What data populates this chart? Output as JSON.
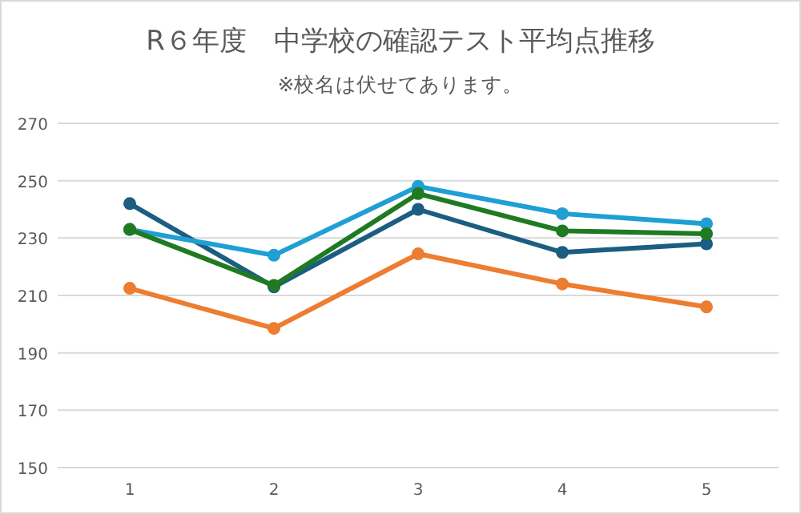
{
  "chart_data": {
    "type": "line",
    "title": "R６年度　中学校の確認テスト平均点推移",
    "subtitle": "※校名は伏せてあります。",
    "categories": [
      "1",
      "2",
      "3",
      "4",
      "5"
    ],
    "series": [
      {
        "color": "#1c5d82",
        "values": [
          242,
          213,
          240,
          225,
          228
        ]
      },
      {
        "color": "#1f9fd4",
        "values": [
          233,
          224,
          248,
          238.5,
          235
        ]
      },
      {
        "color": "#1f7a22",
        "values": [
          233,
          213.5,
          245.5,
          232.5,
          231.5
        ]
      },
      {
        "color": "#ed7d31",
        "values": [
          212.5,
          198.5,
          224.5,
          214,
          206
        ]
      }
    ],
    "ylim": [
      150,
      270
    ],
    "yticks": [
      150,
      170,
      190,
      210,
      230,
      250,
      270
    ],
    "grid": "y",
    "marker": "circle",
    "line_style": "solid"
  }
}
